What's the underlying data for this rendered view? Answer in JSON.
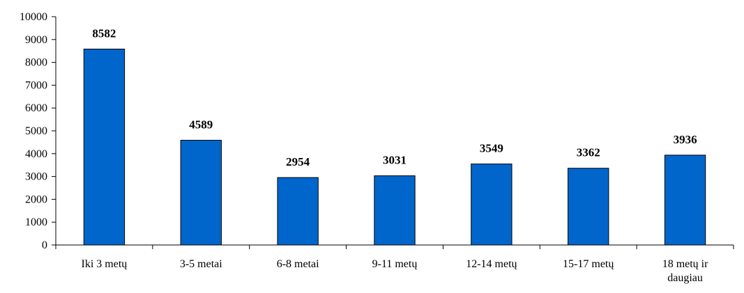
{
  "chart_data": {
    "type": "bar",
    "categories": [
      "Iki 3 metų",
      "3-5 metai",
      "6-8 metai",
      "9-11 metų",
      "12-14 metų",
      "15-17 metų",
      "18 metų ir daugiau"
    ],
    "category_lines": [
      [
        "Iki 3 metų"
      ],
      [
        "3-5 metai"
      ],
      [
        "6-8 metai"
      ],
      [
        "9-11 metų"
      ],
      [
        "12-14 metų"
      ],
      [
        "15-17 metų"
      ],
      [
        "18 metų ir",
        "daugiau"
      ]
    ],
    "values": [
      8582,
      4589,
      2954,
      3031,
      3549,
      3362,
      3936
    ],
    "value_labels": [
      "8582",
      "4589",
      "2954",
      "3031",
      "3549",
      "3362",
      "3936"
    ],
    "ylim": [
      0,
      10000
    ],
    "yticks": [
      0,
      1000,
      2000,
      3000,
      4000,
      5000,
      6000,
      7000,
      8000,
      9000,
      10000
    ],
    "ytick_labels": [
      "0",
      "1000",
      "2000",
      "3000",
      "4000",
      "5000",
      "6000",
      "7000",
      "8000",
      "9000",
      "10000"
    ],
    "title": "",
    "xlabel": "",
    "ylabel": "",
    "grid": false,
    "legend": "none",
    "colors": {
      "bar": "#0066CC",
      "bar_stroke": "#000000",
      "axis": "#000000"
    }
  }
}
